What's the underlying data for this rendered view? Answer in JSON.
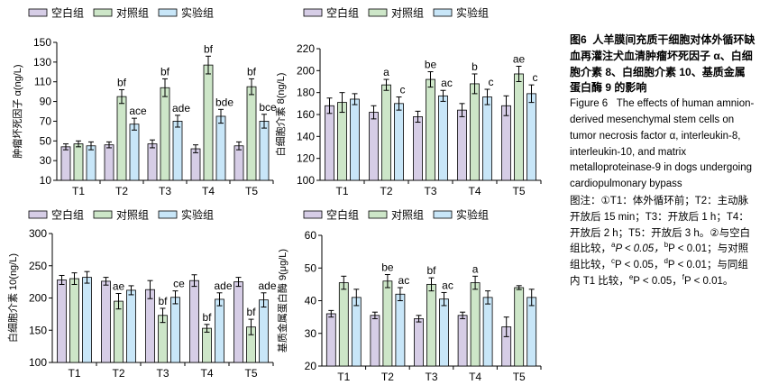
{
  "legend": [
    "空白组",
    "对照组",
    "实验组"
  ],
  "colors": {
    "blank": "#d6cde6",
    "control": "#cde6c8",
    "experiment": "#c8e6f8",
    "stroke": "#000000"
  },
  "caption": {
    "figure_label": "图6",
    "title_zh": "人羊膜间充质干细胞对体外循环缺血再灌注犬血清肿瘤坏死因子 α、白细胞介素 8、白细胞介素 10、基质金属蛋白酶 9 的影响",
    "figure_label_en": "Figure 6",
    "title_en": "The effects of human amnion-derived mesenchymal stem cells on tumor necrosis factor α, interleukin-8, interleukin-10, and matrix metalloproteinase-9 in dogs undergoing cardiopulmonary bypass",
    "notes_prefix": "图注：①T1：体外循环前；T2：主动脉开放后 15 min；T3：开放后 1 h；T4：开放后 2 h；T5：开放后 3 h。②与空白组比较，",
    "note_a_mark": "a",
    "note_a_text": "P < 0.05，",
    "note_b_mark": "b",
    "note_b_text": "P < 0.01；与对照组比较，",
    "note_c_mark": "c",
    "note_c_text": "P < 0.05，",
    "note_d_mark": "d",
    "note_d_text": "P < 0.01；与同组内 T1 比较，",
    "note_e_mark": "e",
    "note_e_text": "P < 0.05，",
    "note_f_mark": "f",
    "note_f_text": "P < 0.01。"
  },
  "chart_data": [
    {
      "type": "bar",
      "ylabel": "肿瘤坏死因子 α(ng/L)",
      "ylim": [
        10,
        150
      ],
      "yticks": [
        10,
        30,
        50,
        70,
        90,
        110,
        130,
        150
      ],
      "categories": [
        "T1",
        "T2",
        "T3",
        "T4",
        "T5"
      ],
      "series": [
        {
          "name": "空白组",
          "values": [
            44,
            46,
            47,
            42,
            45
          ],
          "errors": [
            3,
            3,
            4,
            4,
            4
          ],
          "labels": [
            "",
            "",
            "",
            "",
            ""
          ]
        },
        {
          "name": "对照组",
          "values": [
            47,
            95,
            104,
            127,
            105
          ],
          "errors": [
            3,
            7,
            9,
            9,
            8
          ],
          "labels": [
            "",
            "bf",
            "bf",
            "bf",
            "bf"
          ]
        },
        {
          "name": "实验组",
          "values": [
            45,
            67,
            70,
            75,
            70
          ],
          "errors": [
            4,
            6,
            6,
            7,
            7
          ],
          "labels": [
            "",
            "ace",
            "ade",
            "bde",
            "bce"
          ]
        }
      ]
    },
    {
      "type": "bar",
      "ylabel": "白细胞介素 8(ng/L)",
      "ylim": [
        100,
        220
      ],
      "yticks": [
        100,
        120,
        140,
        160,
        180,
        200,
        220
      ],
      "categories": [
        "T1",
        "T2",
        "T3",
        "T4",
        "T5"
      ],
      "series": [
        {
          "name": "空白组",
          "values": [
            168,
            162,
            158,
            164,
            168
          ],
          "errors": [
            7,
            6,
            5,
            6,
            9
          ],
          "labels": [
            "",
            "",
            "",
            "",
            ""
          ]
        },
        {
          "name": "对照组",
          "values": [
            171,
            187,
            192,
            188,
            197
          ],
          "errors": [
            9,
            5,
            7,
            9,
            7
          ],
          "labels": [
            "",
            "a",
            "be",
            "b",
            "ae"
          ]
        },
        {
          "name": "实验组",
          "values": [
            174,
            170,
            177,
            176,
            179
          ],
          "errors": [
            5,
            6,
            5,
            7,
            8
          ],
          "labels": [
            "",
            "c",
            "ac",
            "c",
            "c"
          ]
        }
      ]
    },
    {
      "type": "bar",
      "ylabel": "白细胞介素 10(ng/L)",
      "ylim": [
        100,
        300
      ],
      "yticks": [
        100,
        150,
        200,
        250,
        300
      ],
      "categories": [
        "T1",
        "T2",
        "T3",
        "T4",
        "T5"
      ],
      "series": [
        {
          "name": "空白组",
          "values": [
            228,
            226,
            213,
            227,
            225
          ],
          "errors": [
            7,
            6,
            14,
            9,
            7
          ],
          "labels": [
            "",
            "",
            "",
            "",
            ""
          ]
        },
        {
          "name": "对照组",
          "values": [
            230,
            195,
            173,
            153,
            155
          ],
          "errors": [
            9,
            12,
            11,
            6,
            12
          ],
          "labels": [
            "",
            "ae",
            "bf",
            "bf",
            "bf"
          ]
        },
        {
          "name": "实验组",
          "values": [
            232,
            212,
            201,
            198,
            197
          ],
          "errors": [
            9,
            7,
            10,
            10,
            11
          ],
          "labels": [
            "",
            "",
            "ce",
            "ade",
            "ade"
          ]
        }
      ]
    },
    {
      "type": "bar",
      "ylabel": "基质金属蛋白酶 9(μg/L)",
      "ylim": [
        20,
        60
      ],
      "yticks": [
        20,
        30,
        40,
        50,
        60
      ],
      "categories": [
        "T1",
        "T2",
        "T3",
        "T4",
        "T5"
      ],
      "series": [
        {
          "name": "空白组",
          "values": [
            36,
            35.5,
            34.5,
            35.5,
            32
          ],
          "errors": [
            1,
            1,
            1,
            1,
            3
          ],
          "labels": [
            "",
            "",
            "",
            "",
            ""
          ]
        },
        {
          "name": "对照组",
          "values": [
            45.5,
            46,
            45,
            45.5,
            44
          ],
          "errors": [
            2,
            2,
            2,
            2,
            0.6
          ],
          "labels": [
            "",
            "be",
            "bf",
            "a",
            ""
          ]
        },
        {
          "name": "实验组",
          "values": [
            41,
            42,
            40.5,
            41,
            41
          ],
          "errors": [
            2.5,
            2,
            2,
            2,
            2.5
          ],
          "labels": [
            "",
            "ac",
            "ac",
            "",
            ""
          ]
        }
      ]
    }
  ]
}
